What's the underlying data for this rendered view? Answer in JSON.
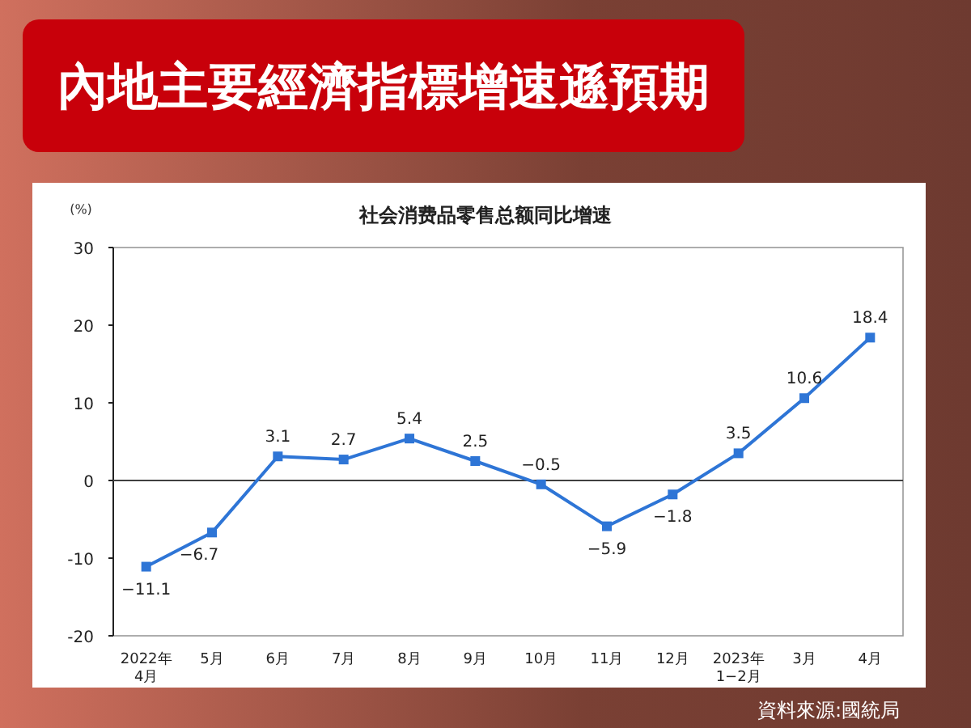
{
  "chart_data": {
    "type": "line",
    "title": "內地主要經濟指標增速遜預期",
    "subtitle": "社会消费品零售总额同比增速",
    "ylabel": "(%)",
    "categories": [
      "2022年\n4月",
      "5月",
      "6月",
      "7月",
      "8月",
      "9月",
      "10月",
      "11月",
      "12月",
      "2023年\n1−2月",
      "3月",
      "4月"
    ],
    "series": [
      {
        "color": "#2e75d6",
        "values": [
          -11.1,
          -6.7,
          3.1,
          2.7,
          5.4,
          2.5,
          -0.5,
          -5.9,
          -1.8,
          3.5,
          10.6,
          18.4
        ]
      }
    ],
    "ylim": [
      -20,
      30
    ],
    "yticks": [
      -20,
      -10,
      0,
      10,
      20,
      30
    ],
    "grid": false,
    "marker": "square",
    "data_labels": true,
    "ref_lines": [
      {
        "axis": "y",
        "value": 0,
        "color": "#404040"
      }
    ],
    "annotations": [
      "資料來源:國統局"
    ]
  }
}
